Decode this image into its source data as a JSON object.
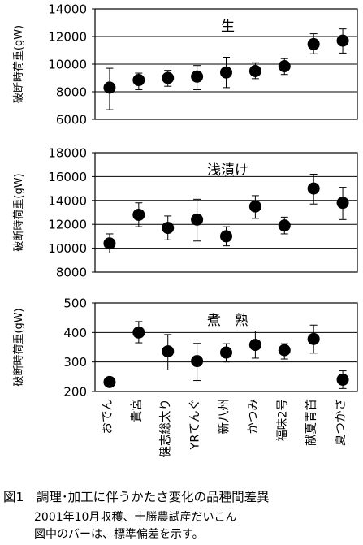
{
  "figure": {
    "caption_title": "図1　調理･加工に伴うかたさ変化の品種間差異",
    "caption_note1": "2001年10月収穫、十勝農試産だいこん",
    "caption_note2": "図中のバーは、標準偏差を示す。"
  },
  "chart_data": [
    {
      "type": "scatter",
      "title": "生",
      "ylabel": "破断時荷重(gW)",
      "ylim": [
        6000,
        14000
      ],
      "yticks": [
        6000,
        8000,
        10000,
        12000,
        14000
      ],
      "ytick_labels": [
        "6000",
        "8000",
        "10000",
        "12000",
        "14000"
      ],
      "grid": true,
      "categories": [
        "おでん",
        "貴宮",
        "健志総太り",
        "YRてんぐ",
        "新八州",
        "かつみ",
        "福味2号",
        "献夏青首",
        "夏つかさ"
      ],
      "values": [
        8300,
        8850,
        9000,
        9100,
        9400,
        9500,
        9850,
        11450,
        11700
      ],
      "error_low": [
        6700,
        8150,
        8400,
        8150,
        8300,
        8950,
        9250,
        10750,
        10800
      ],
      "error_high": [
        9700,
        9350,
        9550,
        9900,
        10500,
        10100,
        10400,
        12200,
        12550
      ]
    },
    {
      "type": "scatter",
      "title": "浅漬け",
      "ylabel": "破断時荷重(gW)",
      "ylim": [
        8000,
        18000
      ],
      "yticks": [
        8000,
        10000,
        12000,
        14000,
        16000,
        18000
      ],
      "ytick_labels": [
        "8000",
        "10000",
        "12000",
        "14000",
        "16000",
        "18000"
      ],
      "grid": true,
      "categories": [
        "おでん",
        "貴宮",
        "健志総太り",
        "YRてんぐ",
        "新八州",
        "かつみ",
        "福味2号",
        "献夏青首",
        "夏つかさ"
      ],
      "values": [
        10400,
        12800,
        11700,
        12400,
        11000,
        13500,
        11900,
        15000,
        13800
      ],
      "error_low": [
        9600,
        11800,
        10700,
        10600,
        10200,
        12500,
        11200,
        13700,
        12400
      ],
      "error_high": [
        11200,
        13800,
        12700,
        14100,
        11800,
        14400,
        12600,
        16200,
        15100
      ]
    },
    {
      "type": "scatter",
      "title": "煮　熟",
      "ylabel": "破断時荷重(gW)",
      "ylim": [
        200,
        500
      ],
      "yticks": [
        200,
        300,
        400,
        500
      ],
      "ytick_labels": [
        "200",
        "300",
        "400",
        "500"
      ],
      "grid": true,
      "categories": [
        "おでん",
        "貴宮",
        "健志総太り",
        "YRてんぐ",
        "新八州",
        "かつみ",
        "福味2号",
        "献夏青首",
        "夏つかさ"
      ],
      "values": [
        232,
        400,
        336,
        303,
        332,
        358,
        340,
        378,
        240
      ],
      "error_low": [
        222,
        365,
        273,
        237,
        300,
        313,
        310,
        330,
        210
      ],
      "error_high": [
        242,
        437,
        393,
        363,
        362,
        405,
        362,
        425,
        270
      ]
    }
  ]
}
